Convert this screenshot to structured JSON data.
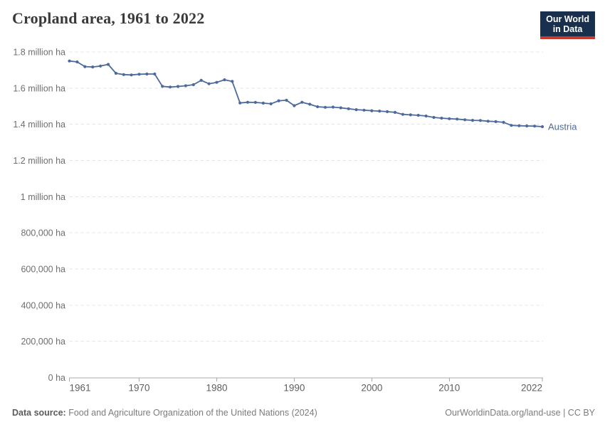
{
  "header": {
    "title": "Cropland area, 1961 to 2022",
    "logo": {
      "line1": "Our World",
      "line2": "in Data"
    }
  },
  "footer": {
    "source_label": "Data source:",
    "source_text": "Food and Agriculture Organization of the United Nations (2024)",
    "url": "OurWorldinData.org/land-use",
    "separator": " | ",
    "license": "CC BY"
  },
  "colors": {
    "line": "#4C6A9C",
    "entity_label": "#4C6A9C",
    "grid": "#e4e4e4",
    "axis": "#a8a8a8",
    "x_tick_label": "#5e5e5e",
    "y_tick_label": "#6e6e6e",
    "logo_bg": "#18304E",
    "logo_accent": "#C5392F"
  },
  "chart_data": {
    "type": "line",
    "title": "Cropland area, 1961 to 2022",
    "entity": "Austria",
    "unit": "ha",
    "xlim": [
      1961,
      2022
    ],
    "ylim": [
      0,
      1800000
    ],
    "grid": true,
    "legend": "entity-label-at-line-end",
    "x_ticks": [
      1961,
      1970,
      1980,
      1990,
      2000,
      2010,
      2022
    ],
    "y_ticks": [
      {
        "value": 1800000,
        "label": "1.8 million ha"
      },
      {
        "value": 1600000,
        "label": "1.6 million ha"
      },
      {
        "value": 1400000,
        "label": "1.4 million ha"
      },
      {
        "value": 1200000,
        "label": "1.2 million ha"
      },
      {
        "value": 1000000,
        "label": "1 million ha"
      },
      {
        "value": 800000,
        "label": "800,000 ha"
      },
      {
        "value": 600000,
        "label": "600,000 ha"
      },
      {
        "value": 400000,
        "label": "400,000 ha"
      },
      {
        "value": 200000,
        "label": "200,000 ha"
      },
      {
        "value": 0,
        "label": "0 ha"
      }
    ],
    "x": [
      1961,
      1962,
      1963,
      1964,
      1965,
      1966,
      1967,
      1968,
      1969,
      1970,
      1971,
      1972,
      1973,
      1974,
      1975,
      1976,
      1977,
      1978,
      1979,
      1980,
      1981,
      1982,
      1983,
      1984,
      1985,
      1986,
      1987,
      1988,
      1989,
      1990,
      1991,
      1992,
      1993,
      1994,
      1995,
      1996,
      1997,
      1998,
      1999,
      2000,
      2001,
      2002,
      2003,
      2004,
      2005,
      2006,
      2007,
      2008,
      2009,
      2010,
      2011,
      2012,
      2013,
      2014,
      2015,
      2016,
      2017,
      2018,
      2019,
      2020,
      2021,
      2022
    ],
    "series": [
      {
        "name": "Austria",
        "values": [
          1750000,
          1745000,
          1719000,
          1717000,
          1722000,
          1731000,
          1682000,
          1675000,
          1673000,
          1677000,
          1678000,
          1678000,
          1610000,
          1606000,
          1609000,
          1613000,
          1619000,
          1643000,
          1624000,
          1632000,
          1646000,
          1637000,
          1518000,
          1522000,
          1521000,
          1517000,
          1513000,
          1530000,
          1533000,
          1503000,
          1522000,
          1511000,
          1497000,
          1494000,
          1495000,
          1491000,
          1486000,
          1481000,
          1478000,
          1475000,
          1473000,
          1470000,
          1466000,
          1455000,
          1452000,
          1450000,
          1446000,
          1438000,
          1434000,
          1431000,
          1429000,
          1425000,
          1422000,
          1421000,
          1417000,
          1415000,
          1411000,
          1394000,
          1392000,
          1391000,
          1390000,
          1387000
        ]
      }
    ]
  }
}
